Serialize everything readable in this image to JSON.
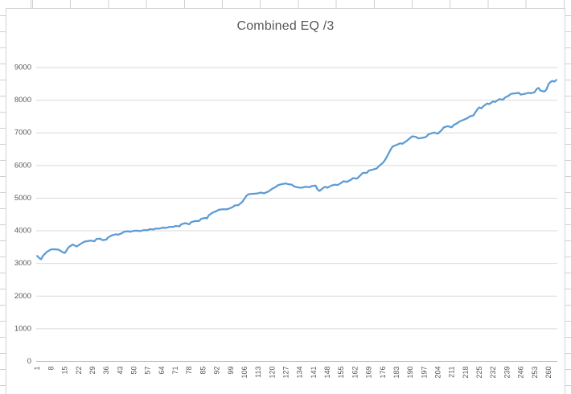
{
  "window": {
    "background": "#ffffff"
  },
  "colors": {
    "series_line": "#5B9BD5",
    "gridline": "#D9D9D9",
    "axis_line": "#BFBFBF",
    "tick_text": "#595959",
    "title_text": "#595959",
    "spreadsheet_gridline": "#D0D0D0",
    "chart_border": "#D3D3D3"
  },
  "chart_data": {
    "type": "line",
    "title": "Combined EQ /3",
    "xlabel": "",
    "ylabel": "",
    "legend": false,
    "grid": true,
    "num_points": 264,
    "x_axis": {
      "tick_labels": [
        "1",
        "8",
        "15",
        "22",
        "29",
        "36",
        "43",
        "50",
        "57",
        "64",
        "71",
        "78",
        "85",
        "92",
        "99",
        "106",
        "113",
        "120",
        "127",
        "134",
        "141",
        "148",
        "155",
        "162",
        "169",
        "176",
        "183",
        "190",
        "197",
        "204",
        "211",
        "218",
        "225",
        "232",
        "239",
        "246",
        "253",
        "260"
      ],
      "label_interval": 7
    },
    "y_axis": {
      "min": 0,
      "max": 9000,
      "tick_step": 1000,
      "tick_labels": [
        "0",
        "1000",
        "2000",
        "3000",
        "4000",
        "5000",
        "6000",
        "7000",
        "8000",
        "9000"
      ]
    },
    "series": [
      {
        "name": "Combined EQ /3",
        "color": "#5B9BD5",
        "points": [
          [
            1,
            3230
          ],
          [
            2,
            3170
          ],
          [
            3,
            3130
          ],
          [
            4,
            3240
          ],
          [
            6,
            3360
          ],
          [
            8,
            3430
          ],
          [
            10,
            3435
          ],
          [
            12,
            3420
          ],
          [
            14,
            3340
          ],
          [
            15,
            3320
          ],
          [
            17,
            3500
          ],
          [
            19,
            3580
          ],
          [
            21,
            3520
          ],
          [
            23,
            3600
          ],
          [
            25,
            3670
          ],
          [
            27,
            3690
          ],
          [
            28,
            3700
          ],
          [
            30,
            3680
          ],
          [
            31,
            3750
          ],
          [
            33,
            3760
          ],
          [
            34,
            3715
          ],
          [
            36,
            3730
          ],
          [
            37,
            3800
          ],
          [
            39,
            3865
          ],
          [
            41,
            3895
          ],
          [
            42,
            3880
          ],
          [
            44,
            3930
          ],
          [
            45,
            3970
          ],
          [
            47,
            3990
          ],
          [
            48,
            3970
          ],
          [
            50,
            4000
          ],
          [
            52,
            4005
          ],
          [
            53,
            3990
          ],
          [
            55,
            4020
          ],
          [
            57,
            4020
          ],
          [
            58,
            4050
          ],
          [
            60,
            4040
          ],
          [
            61,
            4070
          ],
          [
            63,
            4070
          ],
          [
            65,
            4100
          ],
          [
            66,
            4085
          ],
          [
            68,
            4120
          ],
          [
            70,
            4120
          ],
          [
            71,
            4150
          ],
          [
            73,
            4135
          ],
          [
            74,
            4200
          ],
          [
            76,
            4235
          ],
          [
            78,
            4200
          ],
          [
            79,
            4265
          ],
          [
            81,
            4300
          ],
          [
            83,
            4300
          ],
          [
            84,
            4365
          ],
          [
            86,
            4395
          ],
          [
            87,
            4380
          ],
          [
            88,
            4480
          ],
          [
            90,
            4560
          ],
          [
            92,
            4610
          ],
          [
            93,
            4645
          ],
          [
            95,
            4660
          ],
          [
            97,
            4660
          ],
          [
            98,
            4675
          ],
          [
            100,
            4725
          ],
          [
            101,
            4775
          ],
          [
            103,
            4790
          ],
          [
            105,
            4890
          ],
          [
            106,
            4985
          ],
          [
            107,
            5070
          ],
          [
            108,
            5120
          ],
          [
            110,
            5135
          ],
          [
            111,
            5135
          ],
          [
            113,
            5150
          ],
          [
            114,
            5170
          ],
          [
            116,
            5150
          ],
          [
            118,
            5200
          ],
          [
            120,
            5285
          ],
          [
            122,
            5350
          ],
          [
            123,
            5400
          ],
          [
            125,
            5430
          ],
          [
            127,
            5450
          ],
          [
            128,
            5430
          ],
          [
            130,
            5415
          ],
          [
            131,
            5365
          ],
          [
            133,
            5330
          ],
          [
            135,
            5320
          ],
          [
            137,
            5350
          ],
          [
            139,
            5335
          ],
          [
            140,
            5370
          ],
          [
            142,
            5385
          ],
          [
            143,
            5270
          ],
          [
            144,
            5220
          ],
          [
            146,
            5320
          ],
          [
            147,
            5350
          ],
          [
            148,
            5320
          ],
          [
            150,
            5385
          ],
          [
            152,
            5415
          ],
          [
            153,
            5400
          ],
          [
            155,
            5465
          ],
          [
            156,
            5515
          ],
          [
            158,
            5500
          ],
          [
            160,
            5565
          ],
          [
            161,
            5615
          ],
          [
            163,
            5600
          ],
          [
            165,
            5715
          ],
          [
            166,
            5775
          ],
          [
            168,
            5775
          ],
          [
            169,
            5845
          ],
          [
            171,
            5875
          ],
          [
            173,
            5910
          ],
          [
            174,
            5975
          ],
          [
            176,
            6075
          ],
          [
            177,
            6150
          ],
          [
            178,
            6250
          ],
          [
            180,
            6480
          ],
          [
            181,
            6580
          ],
          [
            183,
            6630
          ],
          [
            185,
            6680
          ],
          [
            186,
            6665
          ],
          [
            188,
            6745
          ],
          [
            190,
            6845
          ],
          [
            191,
            6895
          ],
          [
            193,
            6875
          ],
          [
            194,
            6830
          ],
          [
            196,
            6845
          ],
          [
            198,
            6875
          ],
          [
            199,
            6945
          ],
          [
            201,
            6990
          ],
          [
            202,
            7010
          ],
          [
            204,
            6975
          ],
          [
            206,
            7090
          ],
          [
            207,
            7170
          ],
          [
            209,
            7205
          ],
          [
            211,
            7170
          ],
          [
            212,
            7240
          ],
          [
            214,
            7305
          ],
          [
            215,
            7350
          ],
          [
            217,
            7400
          ],
          [
            219,
            7450
          ],
          [
            220,
            7500
          ],
          [
            222,
            7535
          ],
          [
            223,
            7630
          ],
          [
            224,
            7720
          ],
          [
            225,
            7780
          ],
          [
            226,
            7750
          ],
          [
            227,
            7815
          ],
          [
            229,
            7900
          ],
          [
            230,
            7880
          ],
          [
            232,
            7965
          ],
          [
            233,
            7945
          ],
          [
            235,
            8030
          ],
          [
            237,
            8015
          ],
          [
            238,
            8080
          ],
          [
            240,
            8145
          ],
          [
            241,
            8195
          ],
          [
            243,
            8210
          ],
          [
            245,
            8225
          ],
          [
            246,
            8170
          ],
          [
            248,
            8195
          ],
          [
            250,
            8225
          ],
          [
            251,
            8210
          ],
          [
            253,
            8245
          ],
          [
            254,
            8340
          ],
          [
            255,
            8375
          ],
          [
            256,
            8290
          ],
          [
            258,
            8265
          ],
          [
            259,
            8330
          ],
          [
            260,
            8490
          ],
          [
            261,
            8555
          ],
          [
            262,
            8590
          ],
          [
            263,
            8570
          ],
          [
            264,
            8620
          ]
        ]
      }
    ]
  }
}
